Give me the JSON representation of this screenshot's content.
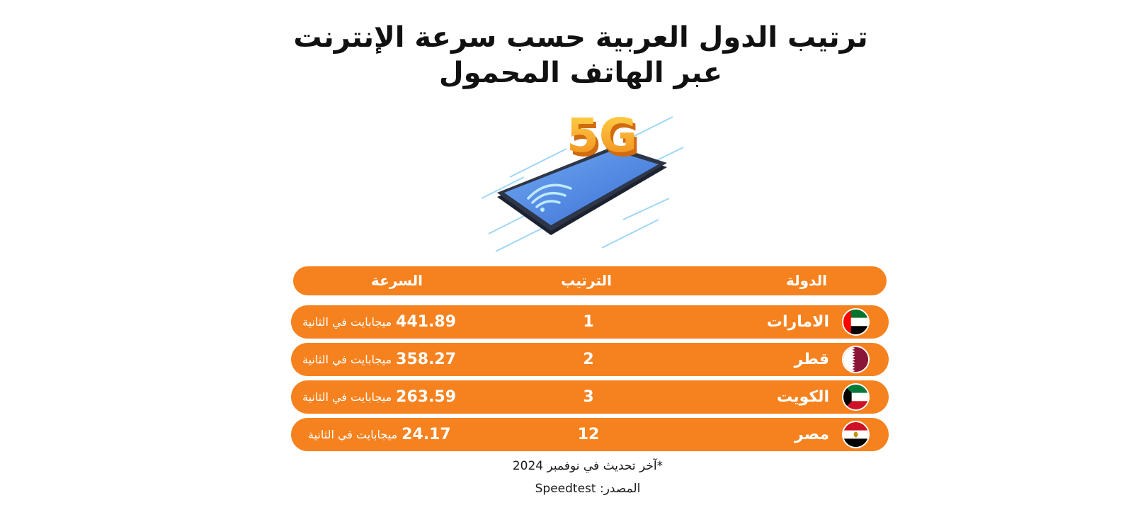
{
  "title": {
    "line1": "ترتيب الدول العربية حسب سرعة الإنترنت",
    "line2": "عبر الهاتف المحمول"
  },
  "hero": {
    "badge_text": "5G",
    "icon": "phone-5g-wifi-illustration"
  },
  "table": {
    "headers": {
      "country": "الدولة",
      "rank": "الترتيب",
      "speed": "السرعة"
    },
    "rows": [
      {
        "country": "الامارات",
        "rank": "1",
        "speed": "441.89",
        "unit": "ميجابايت في الثانية",
        "flag": "uae-flag-icon"
      },
      {
        "country": "قطر",
        "rank": "2",
        "speed": "358.27",
        "unit": "ميجابايت في الثانية",
        "flag": "qatar-flag-icon"
      },
      {
        "country": "الكويت",
        "rank": "3",
        "speed": "263.59",
        "unit": "ميجابايت في الثانية",
        "flag": "kuwait-flag-icon"
      },
      {
        "country": "مصر",
        "rank": "12",
        "speed": "24.17",
        "unit": "ميجابايت في الثانية",
        "flag": "egypt-flag-icon"
      }
    ]
  },
  "footer": {
    "updated": "*آخر تحديث في نوفمبر 2024",
    "source": "المصدر: Speedtest"
  },
  "colors": {
    "accent": "#f5821f",
    "text": "#1a1a1a"
  }
}
